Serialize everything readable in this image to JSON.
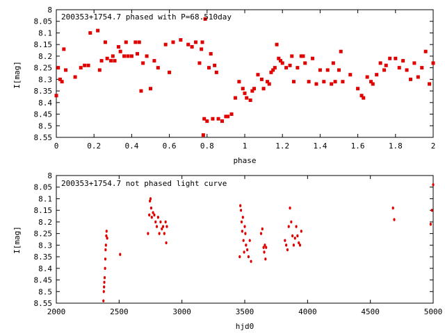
{
  "chart_data": [
    {
      "type": "scatter",
      "title": "200353+1754.7 phased with P=68.510day",
      "xlabel": "phase",
      "ylabel": "I[mag]",
      "xlim": [
        0,
        2
      ],
      "ylim": [
        8.55,
        8
      ],
      "y_inverted": true,
      "xticks": [
        "0",
        "0.2",
        "0.4",
        "0.6",
        "0.8",
        "1",
        "1.2",
        "1.4",
        "1.6",
        "1.8",
        "2"
      ],
      "yticks": [
        "8",
        "8.05",
        "8.1",
        "8.15",
        "8.2",
        "8.25",
        "8.3",
        "8.35",
        "8.4",
        "8.45",
        "8.5",
        "8.55"
      ],
      "marker_color": "#e00000",
      "series": [
        {
          "x": [
            0.0,
            0.01,
            0.02,
            0.03,
            0.04,
            0.05,
            0.1,
            0.13,
            0.15,
            0.17,
            0.18,
            0.22,
            0.23,
            0.24,
            0.26,
            0.27,
            0.29,
            0.3,
            0.31,
            0.33,
            0.34,
            0.36,
            0.37,
            0.38,
            0.4,
            0.42,
            0.43,
            0.44,
            0.45,
            0.46,
            0.48,
            0.5,
            0.52,
            0.54,
            0.58,
            0.6,
            0.62,
            0.66,
            0.7,
            0.72,
            0.74,
            0.76,
            0.77,
            0.775,
            0.78,
            0.785,
            0.79,
            0.8,
            0.81,
            0.82,
            0.83,
            0.84,
            0.85,
            0.86,
            0.88,
            0.9,
            0.91,
            0.93,
            0.95,
            0.97,
            0.99,
            1.0,
            1.01,
            1.03,
            1.04,
            1.05,
            1.07,
            1.09,
            1.1,
            1.12,
            1.13,
            1.14,
            1.15,
            1.16,
            1.17,
            1.18,
            1.19,
            1.2,
            1.22,
            1.24,
            1.25,
            1.26,
            1.28,
            1.3,
            1.31,
            1.32,
            1.34,
            1.36,
            1.38,
            1.4,
            1.42,
            1.44,
            1.46,
            1.47,
            1.48,
            1.5,
            1.51,
            1.52,
            1.56,
            1.6,
            1.62,
            1.63,
            1.65,
            1.67,
            1.68,
            1.7,
            1.72,
            1.74,
            1.75,
            1.77,
            1.8,
            1.82,
            1.84,
            1.86,
            1.88,
            1.9,
            1.92,
            1.94,
            1.96,
            1.98,
            2.0
          ],
          "y": [
            8.37,
            8.25,
            8.3,
            8.31,
            8.17,
            8.26,
            8.29,
            8.25,
            8.24,
            8.24,
            8.1,
            8.09,
            8.26,
            8.22,
            8.14,
            8.21,
            8.22,
            8.2,
            8.22,
            8.16,
            8.18,
            8.2,
            8.14,
            8.2,
            8.2,
            8.14,
            8.19,
            8.14,
            8.35,
            8.23,
            8.2,
            8.34,
            8.22,
            8.25,
            8.15,
            8.27,
            8.14,
            8.13,
            8.15,
            8.16,
            8.14,
            8.23,
            8.17,
            8.14,
            8.54,
            8.47,
            8.04,
            8.48,
            8.25,
            8.19,
            8.47,
            8.24,
            8.27,
            8.47,
            8.48,
            8.46,
            8.46,
            8.45,
            8.38,
            8.31,
            8.34,
            8.36,
            8.38,
            8.39,
            8.35,
            8.34,
            8.28,
            8.3,
            8.34,
            8.31,
            8.32,
            8.27,
            8.26,
            8.25,
            8.15,
            8.21,
            8.22,
            8.23,
            8.25,
            8.24,
            8.2,
            8.31,
            8.25,
            8.2,
            8.2,
            8.23,
            8.31,
            8.21,
            8.32,
            8.26,
            8.31,
            8.26,
            8.32,
            8.23,
            8.31,
            8.26,
            8.18,
            8.31,
            8.28,
            8.34,
            8.37,
            8.38,
            8.29,
            8.31,
            8.32,
            8.28,
            8.23,
            8.26,
            8.24,
            8.21,
            8.21,
            8.25,
            8.22,
            8.26,
            8.3,
            8.23,
            8.29,
            8.25,
            8.18,
            8.32,
            8.23
          ]
        }
      ]
    },
    {
      "type": "scatter",
      "title": "200353+1754.7 not phased light curve",
      "xlabel": "hjd0",
      "ylabel": "I[mag]",
      "xlim": [
        2000,
        5000
      ],
      "ylim": [
        8.55,
        8
      ],
      "y_inverted": true,
      "xticks": [
        "2000",
        "2500",
        "3000",
        "3500",
        "4000",
        "4500",
        "5000"
      ],
      "yticks": [
        "8",
        "8.05",
        "8.1",
        "8.15",
        "8.2",
        "8.25",
        "8.3",
        "8.35",
        "8.4",
        "8.45",
        "8.5",
        "8.55"
      ],
      "marker_color": "#e00000",
      "series": [
        {
          "x": [
            2375,
            2378,
            2380,
            2382,
            2385,
            2388,
            2390,
            2392,
            2395,
            2398,
            2400,
            2405,
            2508,
            2730,
            2740,
            2745,
            2750,
            2755,
            2760,
            2770,
            2780,
            2790,
            2800,
            2810,
            2820,
            2830,
            2840,
            2850,
            2860,
            2870,
            2875,
            2880,
            3460,
            3465,
            3470,
            3475,
            3480,
            3485,
            3490,
            3495,
            3500,
            3505,
            3510,
            3520,
            3530,
            3540,
            3550,
            3630,
            3640,
            3650,
            3655,
            3660,
            3665,
            3670,
            3820,
            3830,
            3840,
            3850,
            3860,
            3870,
            3880,
            3890,
            3900,
            3910,
            3920,
            3930,
            3940,
            3950,
            4680,
            4690,
            4980,
            4990,
            5000
          ],
          "y": [
            8.54,
            8.5,
            8.48,
            8.46,
            8.44,
            8.4,
            8.36,
            8.32,
            8.3,
            8.26,
            8.24,
            8.27,
            8.34,
            8.25,
            8.17,
            8.11,
            8.1,
            8.14,
            8.18,
            8.16,
            8.17,
            8.2,
            8.22,
            8.18,
            8.25,
            8.2,
            8.23,
            8.22,
            8.25,
            8.2,
            8.29,
            8.22,
            8.35,
            8.13,
            8.15,
            8.2,
            8.24,
            8.18,
            8.28,
            8.33,
            8.22,
            8.25,
            8.3,
            8.32,
            8.35,
            8.28,
            8.37,
            8.25,
            8.23,
            8.31,
            8.33,
            8.3,
            8.36,
            8.31,
            8.28,
            8.3,
            8.32,
            8.22,
            8.14,
            8.2,
            8.26,
            8.3,
            8.27,
            8.22,
            8.26,
            8.29,
            8.3,
            8.24,
            8.14,
            8.19,
            8.21,
            8.15,
            8.04
          ]
        }
      ]
    }
  ]
}
